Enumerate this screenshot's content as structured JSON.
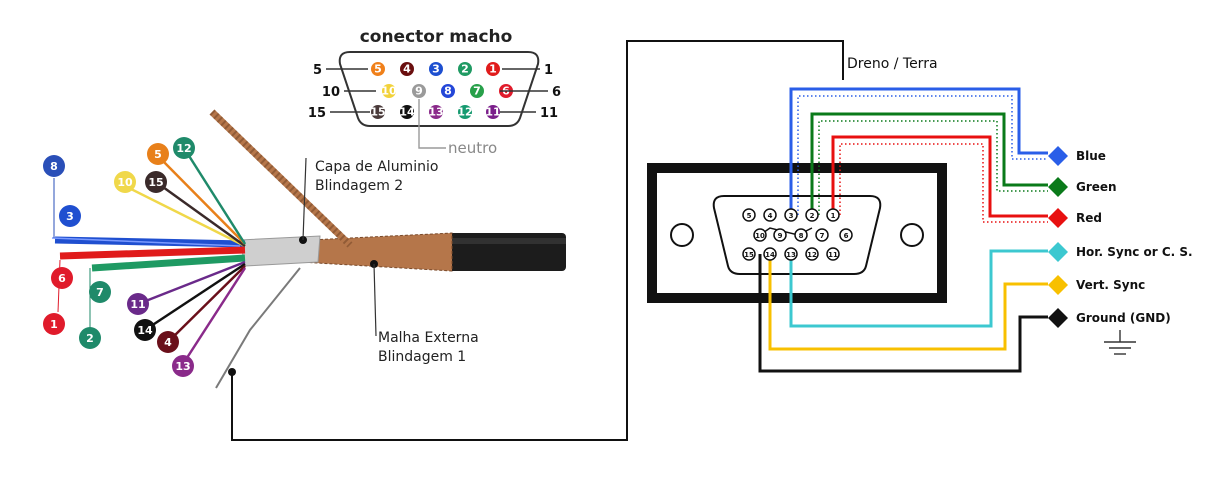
{
  "connector": {
    "title": "conector macho",
    "neutro_label": "neutro",
    "side_numbers": {
      "row1_left": "5",
      "row1_right": "1",
      "row2_left": "10",
      "row2_right": "6",
      "row3_left": "15",
      "row3_right": "11"
    },
    "pins": [
      {
        "n": "5",
        "color": "#f0801a"
      },
      {
        "n": "4",
        "color": "#6a0f0f"
      },
      {
        "n": "3",
        "color": "#1d4fd0"
      },
      {
        "n": "2",
        "color": "#1f9a63"
      },
      {
        "n": "1",
        "color": "#e01b1b"
      },
      {
        "n": "10",
        "color": "#f2d23a"
      },
      {
        "n": "9",
        "color": "#9a9a9a"
      },
      {
        "n": "8",
        "color": "#2447d8"
      },
      {
        "n": "7",
        "color": "#28a04a"
      },
      {
        "n": "6",
        "color": "#e01b2b"
      },
      {
        "n": "15",
        "color": "#4a3a3a"
      },
      {
        "n": "14",
        "color": "#111111"
      },
      {
        "n": "13",
        "color": "#8a2a8a"
      },
      {
        "n": "12",
        "color": "#179a70"
      },
      {
        "n": "11",
        "color": "#7a1e8a"
      }
    ]
  },
  "cable": {
    "label_shield2_line1": "Capa de Aluminio",
    "label_shield2_line2": "Blindagem 2",
    "label_shield1_line1": "Malha Externa",
    "label_shield1_line2": "Blindagem 1",
    "wire_badges": [
      {
        "n": "8",
        "color": "#2a4fb8"
      },
      {
        "n": "3",
        "color": "#1f4fd0"
      },
      {
        "n": "6",
        "color": "#e01b2b"
      },
      {
        "n": "1",
        "color": "#e01b2b"
      },
      {
        "n": "7",
        "color": "#1f8a6a"
      },
      {
        "n": "2",
        "color": "#1f8a6a"
      },
      {
        "n": "10",
        "color": "#f0d84a"
      },
      {
        "n": "15",
        "color": "#3a2a2a"
      },
      {
        "n": "5",
        "color": "#e8801a"
      },
      {
        "n": "12",
        "color": "#1f8a6a"
      },
      {
        "n": "11",
        "color": "#6a2a8a"
      },
      {
        "n": "14",
        "color": "#111111"
      },
      {
        "n": "4",
        "color": "#6a0f1a"
      },
      {
        "n": "13",
        "color": "#8a2a8a"
      }
    ]
  },
  "right": {
    "dreno_label": "Dreno / Terra",
    "db15_pins": [
      {
        "n": "5"
      },
      {
        "n": "4"
      },
      {
        "n": "3"
      },
      {
        "n": "2"
      },
      {
        "n": "1"
      },
      {
        "n": "10"
      },
      {
        "n": "9"
      },
      {
        "n": "8"
      },
      {
        "n": "7"
      },
      {
        "n": "6"
      },
      {
        "n": "15"
      },
      {
        "n": "14"
      },
      {
        "n": "13"
      },
      {
        "n": "12"
      },
      {
        "n": "11"
      }
    ],
    "signals": [
      {
        "label": "Blue",
        "color": "#2a5ee8"
      },
      {
        "label": "Green",
        "color": "#0a7a1a"
      },
      {
        "label": "Red",
        "color": "#e81010"
      },
      {
        "label": "Hor. Sync or C. S.",
        "color": "#3cc8d0"
      },
      {
        "label": "Vert. Sync",
        "color": "#f8c000"
      },
      {
        "label": "Ground (GND)",
        "color": "#111111"
      }
    ]
  }
}
